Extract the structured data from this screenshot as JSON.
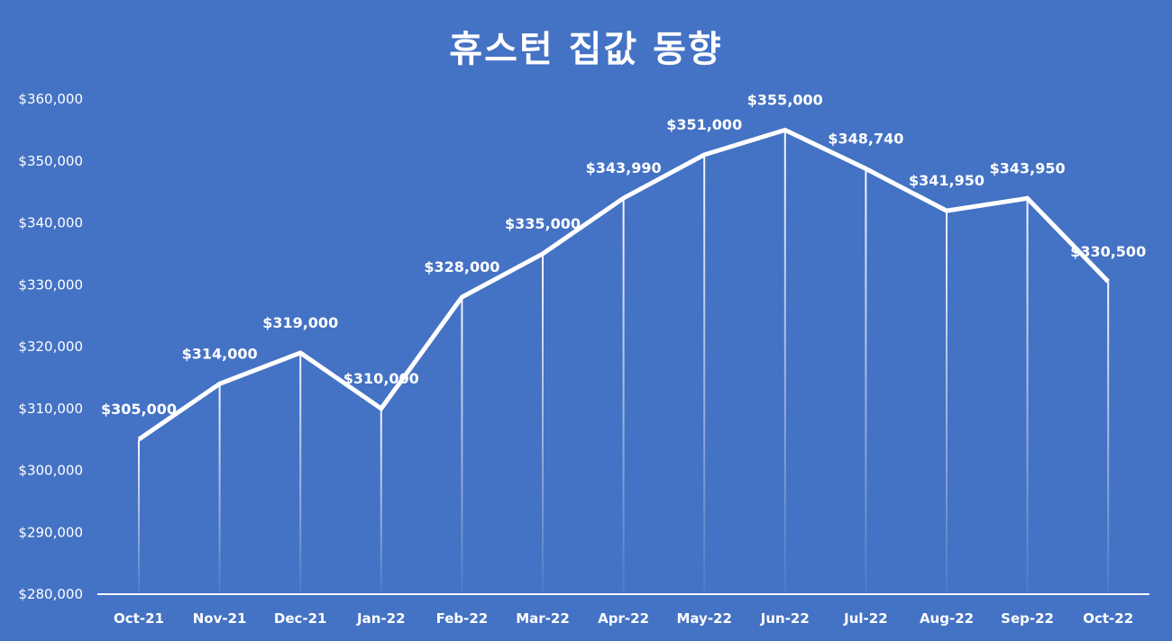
{
  "chart_data": {
    "type": "line",
    "title": "휴스턴 집값 동향",
    "categories": [
      "Oct-21",
      "Nov-21",
      "Dec-21",
      "Jan-22",
      "Feb-22",
      "Mar-22",
      "Apr-22",
      "May-22",
      "Jun-22",
      "Jul-22",
      "Aug-22",
      "Sep-22",
      "Oct-22"
    ],
    "values": [
      305000,
      314000,
      319000,
      310000,
      328000,
      335000,
      343990,
      351000,
      355000,
      348740,
      341950,
      343950,
      330500
    ],
    "data_labels": [
      "$305,000",
      "$314,000",
      "$319,000",
      "$310,000",
      "$328,000",
      "$335,000",
      "$343,990",
      "$351,000",
      "$355,000",
      "$348,740",
      "$341,950",
      "$343,950",
      "$330,500"
    ],
    "ylim": [
      280000,
      360000
    ],
    "yticks": [
      "$280,000",
      "$290,000",
      "$300,000",
      "$310,000",
      "$320,000",
      "$330,000",
      "$340,000",
      "$350,000",
      "$360,000"
    ],
    "grid": false,
    "drop_lines": true,
    "colors": {
      "background": "#4472C4",
      "line": "#FFFFFF",
      "text": "#FFFFFF"
    }
  }
}
